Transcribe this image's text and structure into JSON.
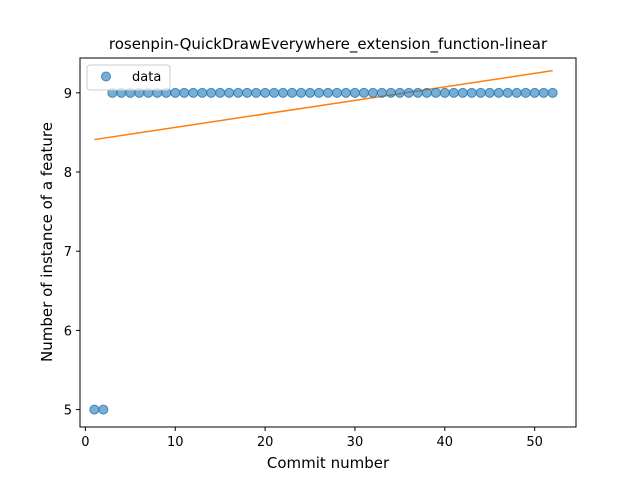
{
  "chart_data": {
    "type": "scatter",
    "title": "rosenpin-QuickDrawEverywhere_extension_function-linear",
    "xlabel": "Commit number",
    "ylabel": "Number of instance of a feature",
    "xlim": [
      -0.6,
      54.6
    ],
    "ylim": [
      4.78,
      9.44
    ],
    "xticks": [
      0,
      10,
      20,
      30,
      40,
      50
    ],
    "yticks": [
      5,
      6,
      7,
      8,
      9
    ],
    "legend": {
      "placement": "top-left",
      "entries": [
        "data"
      ]
    },
    "colors": {
      "data": "#1f77b4",
      "fit": "#ff7f0e"
    },
    "series": [
      {
        "name": "data",
        "kind": "scatter",
        "x": [
          1,
          2,
          3,
          4,
          5,
          6,
          7,
          8,
          9,
          10,
          11,
          12,
          13,
          14,
          15,
          16,
          17,
          18,
          19,
          20,
          21,
          22,
          23,
          24,
          25,
          26,
          27,
          28,
          29,
          30,
          31,
          32,
          33,
          34,
          35,
          36,
          37,
          38,
          39,
          40,
          41,
          42,
          43,
          44,
          45,
          46,
          47,
          48,
          49,
          50,
          51,
          52
        ],
        "y": [
          5,
          5,
          9,
          9,
          9,
          9,
          9,
          9,
          9,
          9,
          9,
          9,
          9,
          9,
          9,
          9,
          9,
          9,
          9,
          9,
          9,
          9,
          9,
          9,
          9,
          9,
          9,
          9,
          9,
          9,
          9,
          9,
          9,
          9,
          9,
          9,
          9,
          9,
          9,
          9,
          9,
          9,
          9,
          9,
          9,
          9,
          9,
          9,
          9,
          9,
          9,
          9
        ]
      },
      {
        "kind": "line",
        "x": [
          1,
          52
        ],
        "y": [
          8.41,
          9.28
        ]
      }
    ]
  }
}
